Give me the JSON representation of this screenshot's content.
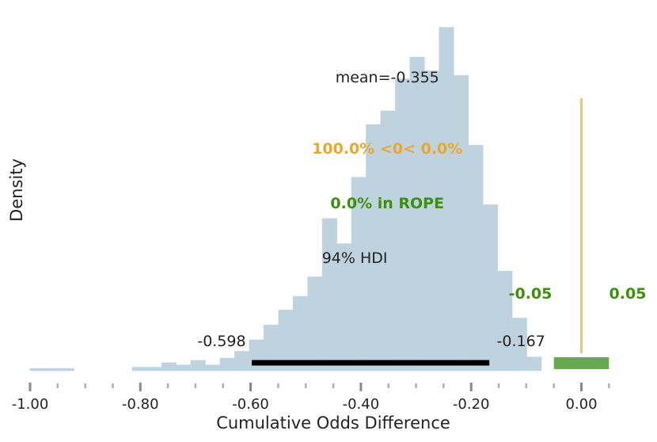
{
  "chart_data": {
    "type": "bar",
    "title": "",
    "xlabel": "Cumulative Odds Difference",
    "ylabel": "Density",
    "xlim": [
      -1.0,
      0.08
    ],
    "ylim": [
      0,
      15
    ],
    "x_ticks": [
      -1.0,
      -0.8,
      -0.6,
      -0.4,
      -0.2,
      0.0
    ],
    "x_tick_labels": [
      "-1.00",
      "-0.80",
      "-0.60",
      "-0.40",
      "-0.20",
      "0.00"
    ],
    "grid": false,
    "legend": "none",
    "histogram": {
      "bin_start": -1.0,
      "bin_width": 0.0265,
      "densities": [
        0.1,
        0.1,
        0.1,
        0.0,
        0.0,
        0.0,
        0.0,
        0.15,
        0.15,
        0.35,
        0.25,
        0.45,
        0.25,
        0.55,
        0.85,
        1.35,
        2.0,
        2.65,
        3.25,
        4.1,
        6.65,
        5.55,
        8.45,
        10.75,
        11.35,
        12.75,
        13.7,
        13.1,
        15.0,
        12.9,
        9.85,
        7.25,
        4.35,
        2.3,
        0.6
      ],
      "color": "#bfd3df"
    },
    "mean": {
      "value": -0.355,
      "label": "mean=-0.355"
    },
    "hdi": {
      "low": -0.598,
      "high": -0.167,
      "label": "94% HDI",
      "low_label": "-0.598",
      "high_label": "-0.167",
      "color": "#000000"
    },
    "reference": {
      "value": 0.0,
      "label": "100.0% <0< 0.0%",
      "color": "#e7a734",
      "line_color": "#ecc47a"
    },
    "rope": {
      "low": -0.05,
      "high": 0.05,
      "label": "0.0% in ROPE",
      "low_label": "-0.05",
      "high_label": "0.05",
      "color": "#3d8f0e",
      "bar_color": "#6aa84f"
    }
  }
}
